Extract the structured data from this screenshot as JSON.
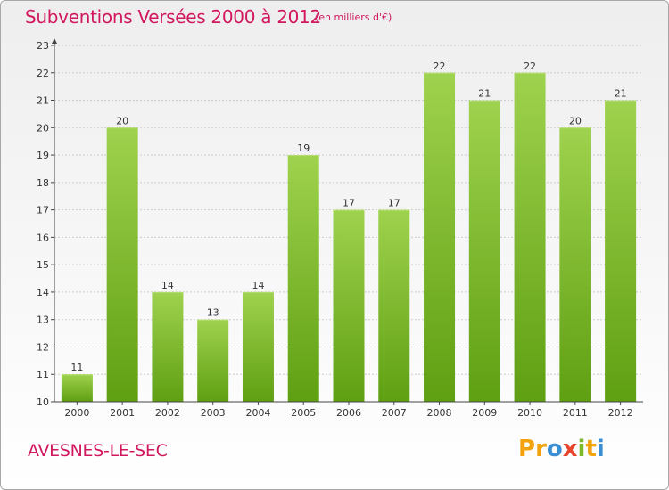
{
  "header": {
    "title": "Subventions Versées 2000 à 2012",
    "subtitle": "(en milliers d'€)"
  },
  "footer": {
    "place": "AVESNES-LE-SEC",
    "logo_text": "Proxiti",
    "logo_letters": [
      {
        "char": "P",
        "color": "#f2a20c"
      },
      {
        "char": "r",
        "color": "#f2a20c"
      },
      {
        "char": "o",
        "color": "#3a8fd4"
      },
      {
        "char": "x",
        "color": "#e8452c"
      },
      {
        "char": "i",
        "color": "#7ab927"
      },
      {
        "char": "t",
        "color": "#f2a20c"
      },
      {
        "char": "i",
        "color": "#3a8fd4"
      }
    ]
  },
  "colors": {
    "title": "#d1185f",
    "bar_top": "#9fd24e",
    "bar_bottom": "#5f9f12",
    "axis": "#444444",
    "grid": "#cccccc"
  },
  "chart_data": {
    "type": "bar",
    "title": "Subventions Versées 2000 à 2012",
    "subtitle": "(en milliers d'€)",
    "xlabel": "",
    "ylabel": "",
    "categories": [
      "2000",
      "2001",
      "2002",
      "2003",
      "2004",
      "2005",
      "2006",
      "2007",
      "2008",
      "2009",
      "2010",
      "2011",
      "2012"
    ],
    "values": [
      11,
      20,
      14,
      13,
      14,
      19,
      17,
      17,
      22,
      21,
      22,
      20,
      21
    ],
    "ylim": [
      10,
      23
    ],
    "yticks": [
      10,
      11,
      12,
      13,
      14,
      15,
      16,
      17,
      18,
      19,
      20,
      21,
      22,
      23
    ],
    "grid": true,
    "data_labels": true,
    "legend": "none"
  }
}
